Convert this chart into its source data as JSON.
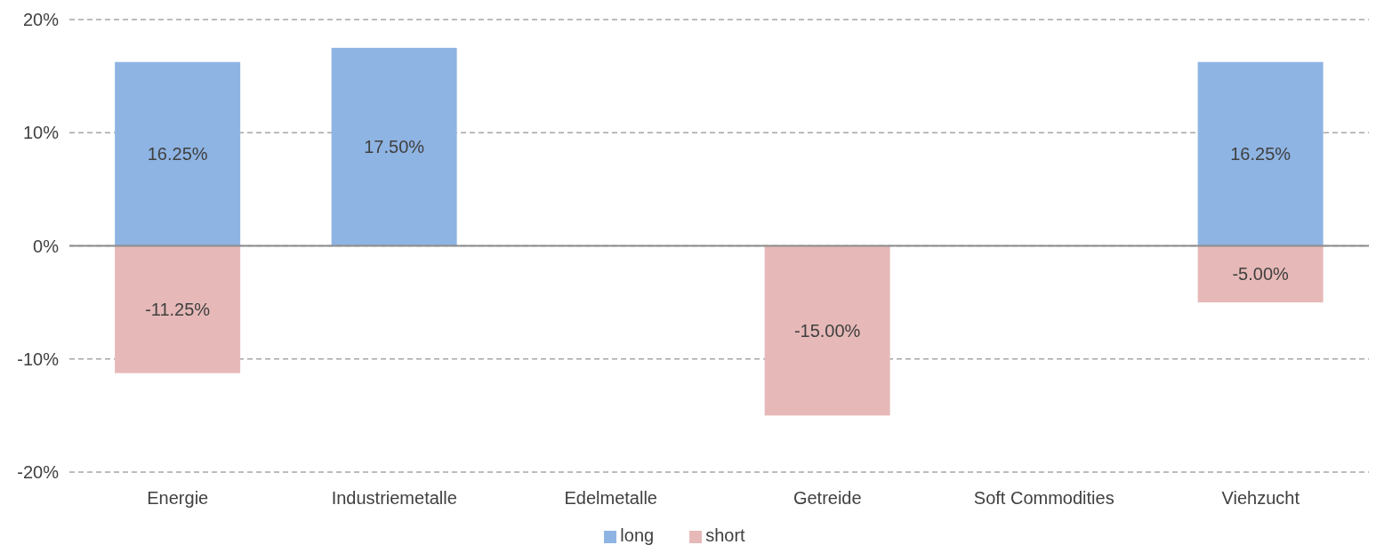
{
  "chart_data": {
    "type": "bar",
    "stacked": true,
    "categories": [
      "Energie",
      "Industriemetalle",
      "Edelmetalle",
      "Getreide",
      "Soft Commodities",
      "Viehzucht"
    ],
    "series": [
      {
        "name": "long",
        "color": "#8eb4e3",
        "values": [
          16.25,
          17.5,
          null,
          null,
          null,
          16.25
        ],
        "value_labels": [
          "16.25%",
          "17.50%",
          null,
          null,
          null,
          "16.25%"
        ]
      },
      {
        "name": "short",
        "color": "#e6b9b8",
        "values": [
          -11.25,
          null,
          null,
          -15,
          null,
          -5
        ],
        "value_labels": [
          "-11.25%",
          null,
          null,
          "-15.00%",
          null,
          "-5.00%"
        ]
      }
    ],
    "ylim": [
      -20,
      20
    ],
    "yticks": [
      {
        "value": -20,
        "label": "-20%"
      },
      {
        "value": -10,
        "label": "-10%"
      },
      {
        "value": 0,
        "label": "0%"
      },
      {
        "value": 10,
        "label": "10%"
      },
      {
        "value": 20,
        "label": "20%"
      }
    ],
    "grid": "y",
    "legend": "bottom"
  }
}
